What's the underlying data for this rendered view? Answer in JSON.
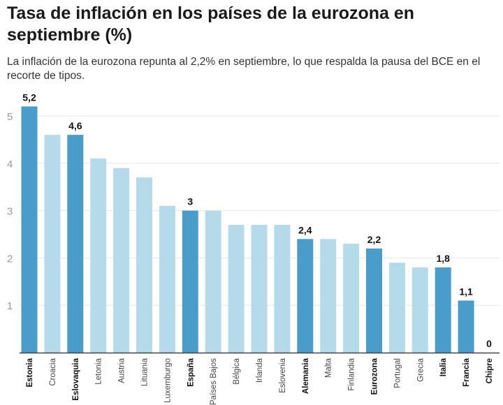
{
  "chart_data": {
    "type": "bar",
    "title": "Tasa de inflación en los países de la eurozona en septiembre (%)",
    "subtitle": "La inflación de la eurozona repunta al 2,2% en septiembre, lo que respalda la pausa del BCE en el recorte de tipos.",
    "categories": [
      "Estonia",
      "Croacia",
      "Eslovaquia",
      "Letonia",
      "Austria",
      "Lituania",
      "Luxemburgo",
      "España",
      "Países Bajos",
      "Bélgica",
      "Irlanda",
      "Eslovenia",
      "Alemania",
      "Malta",
      "Finlandia",
      "Eurozona",
      "Portugal",
      "Grecia",
      "Italia",
      "Francia",
      "Chipre"
    ],
    "values": [
      5.2,
      4.6,
      4.6,
      4.1,
      3.9,
      3.7,
      3.1,
      3.0,
      3.0,
      2.7,
      2.7,
      2.7,
      2.4,
      2.4,
      2.3,
      2.2,
      1.9,
      1.8,
      1.8,
      1.1,
      0
    ],
    "highlighted": [
      "Estonia",
      "Eslovaquia",
      "España",
      "Alemania",
      "Eurozona",
      "Italia",
      "Francia",
      "Chipre"
    ],
    "data_labels": {
      "Estonia": "5,2",
      "Eslovaquia": "4,6",
      "España": "3",
      "Alemania": "2,4",
      "Eurozona": "2,2",
      "Italia": "1,8",
      "Francia": "1,1",
      "Chipre": "0"
    },
    "yticks": [
      "1",
      "2",
      "3",
      "4",
      "5"
    ],
    "ylim": [
      0,
      5.4
    ],
    "grid": true,
    "colors": {
      "highlight": "#4a9dca",
      "normal": "#b5dbeb",
      "grid": "#e6e6e6",
      "axis": "#444444"
    }
  }
}
